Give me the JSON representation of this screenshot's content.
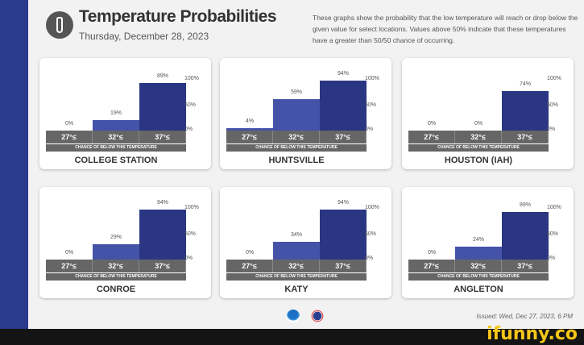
{
  "header": {
    "title": "Temperature Probabilities",
    "date": "Thursday, December 28, 2023",
    "description": "These graphs show the probability that the low temperature will reach or drop below the given value for select locations. Values above 50% indicate that these temperatures have a greater than 50/50 chance of occurring."
  },
  "thresholds": [
    "27°≤",
    "32°≤",
    "37°≤"
  ],
  "axis": [
    "100%",
    "50%",
    "0%"
  ],
  "subtitle": "CHANCE OF BELOW THIS TEMPERATURE",
  "colors": {
    "bar_light": "#4453a8",
    "bar_dark": "#2b3683",
    "label_row": "#666666",
    "side_strip": "#2b3a8c"
  },
  "locations": [
    {
      "name": "COLLEGE STATION",
      "values": [
        0,
        19,
        89
      ],
      "labels": [
        "0%",
        "19%",
        "89%"
      ]
    },
    {
      "name": "HUNTSVILLE",
      "values": [
        4,
        59,
        94
      ],
      "labels": [
        "4%",
        "59%",
        "94%"
      ]
    },
    {
      "name": "HOUSTON (IAH)",
      "values": [
        0,
        0,
        74
      ],
      "labels": [
        "0%",
        "0%",
        "74%"
      ]
    },
    {
      "name": "CONROE",
      "values": [
        0,
        29,
        94
      ],
      "labels": [
        "0%",
        "29%",
        "94%"
      ]
    },
    {
      "name": "KATY",
      "values": [
        0,
        34,
        94
      ],
      "labels": [
        "0%",
        "34%",
        "94%"
      ]
    },
    {
      "name": "ANGLETON",
      "values": [
        0,
        24,
        89
      ],
      "labels": [
        "0%",
        "24%",
        "89%"
      ]
    }
  ],
  "footer": {
    "issued": "Issued: Wed, Dec 27, 2023, 6 PM",
    "logos": [
      "noaa-logo",
      "nws-logo"
    ]
  },
  "watermark": "ifunny.co"
}
